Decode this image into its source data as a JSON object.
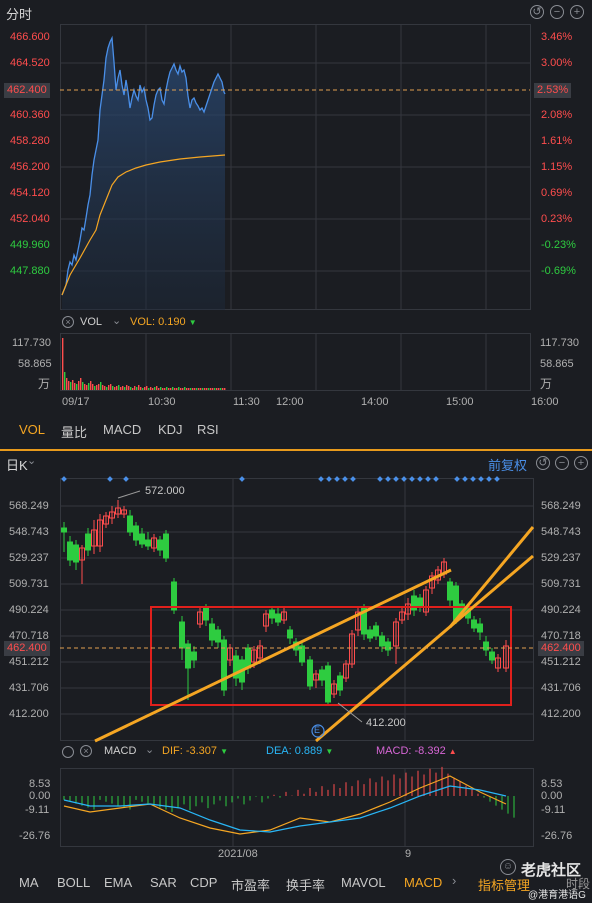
{
  "intraday": {
    "title": "分时",
    "price_axis": [
      "466.600",
      "464.520",
      "462.400",
      "460.360",
      "458.280",
      "456.200",
      "454.120",
      "452.040",
      "449.960",
      "447.880"
    ],
    "pct_axis": [
      "3.46%",
      "3.00%",
      "2.53%",
      "2.08%",
      "1.61%",
      "1.15%",
      "0.69%",
      "0.23%",
      "-0.23%",
      "-0.69%"
    ],
    "current_price": "462.400",
    "current_pct": "2.53%",
    "vol_label": "VOL",
    "vol_value": "VOL: 0.190",
    "vol_axis_left": [
      "117.730",
      "58.865",
      "万"
    ],
    "vol_axis_right": [
      "117.730",
      "58.865",
      "万"
    ],
    "time_axis": [
      "09/17",
      "10:30",
      "11:30",
      "12:00",
      "14:00",
      "15:00",
      "16:00"
    ],
    "tabs": [
      "VOL",
      "量比",
      "MACD",
      "KDJ",
      "RSI"
    ],
    "active_tab": "VOL",
    "colors": {
      "price_line": "#4a8fe8",
      "avg_line": "#f5a623",
      "up": "#ff4d4d",
      "down": "#2ecc40"
    }
  },
  "daily": {
    "title": "日K",
    "adjust_label": "前复权",
    "price_axis": [
      "568.249",
      "548.743",
      "529.237",
      "509.731",
      "490.224",
      "470.718",
      "451.212",
      "431.706",
      "412.200"
    ],
    "current_price": "462.400",
    "high_marker": "572.000",
    "low_marker": "412.200",
    "event_marker": "E",
    "macd": {
      "label": "MACD",
      "dif": "DIF: -3.307",
      "dea": "DEA: 0.889",
      "macd": "MACD: -8.392",
      "axis_left": [
        "8.53",
        "0.00",
        "-9.11",
        "-26.76"
      ],
      "axis_right": [
        "8.53",
        "0.00",
        "-9.11",
        "-26.76"
      ]
    },
    "date_axis": [
      "2021/08",
      "9"
    ],
    "tabs": [
      "MA",
      "BOLL",
      "EMA",
      "SAR",
      "CDP",
      "市盈率",
      "换手率",
      "MAVOL",
      "MACD"
    ],
    "active_tab": "MACD",
    "indicator_manage": "指标管理",
    "watermark_title": "老虎社区",
    "watermark_user": "@港育港语G",
    "more_label": "时段"
  }
}
